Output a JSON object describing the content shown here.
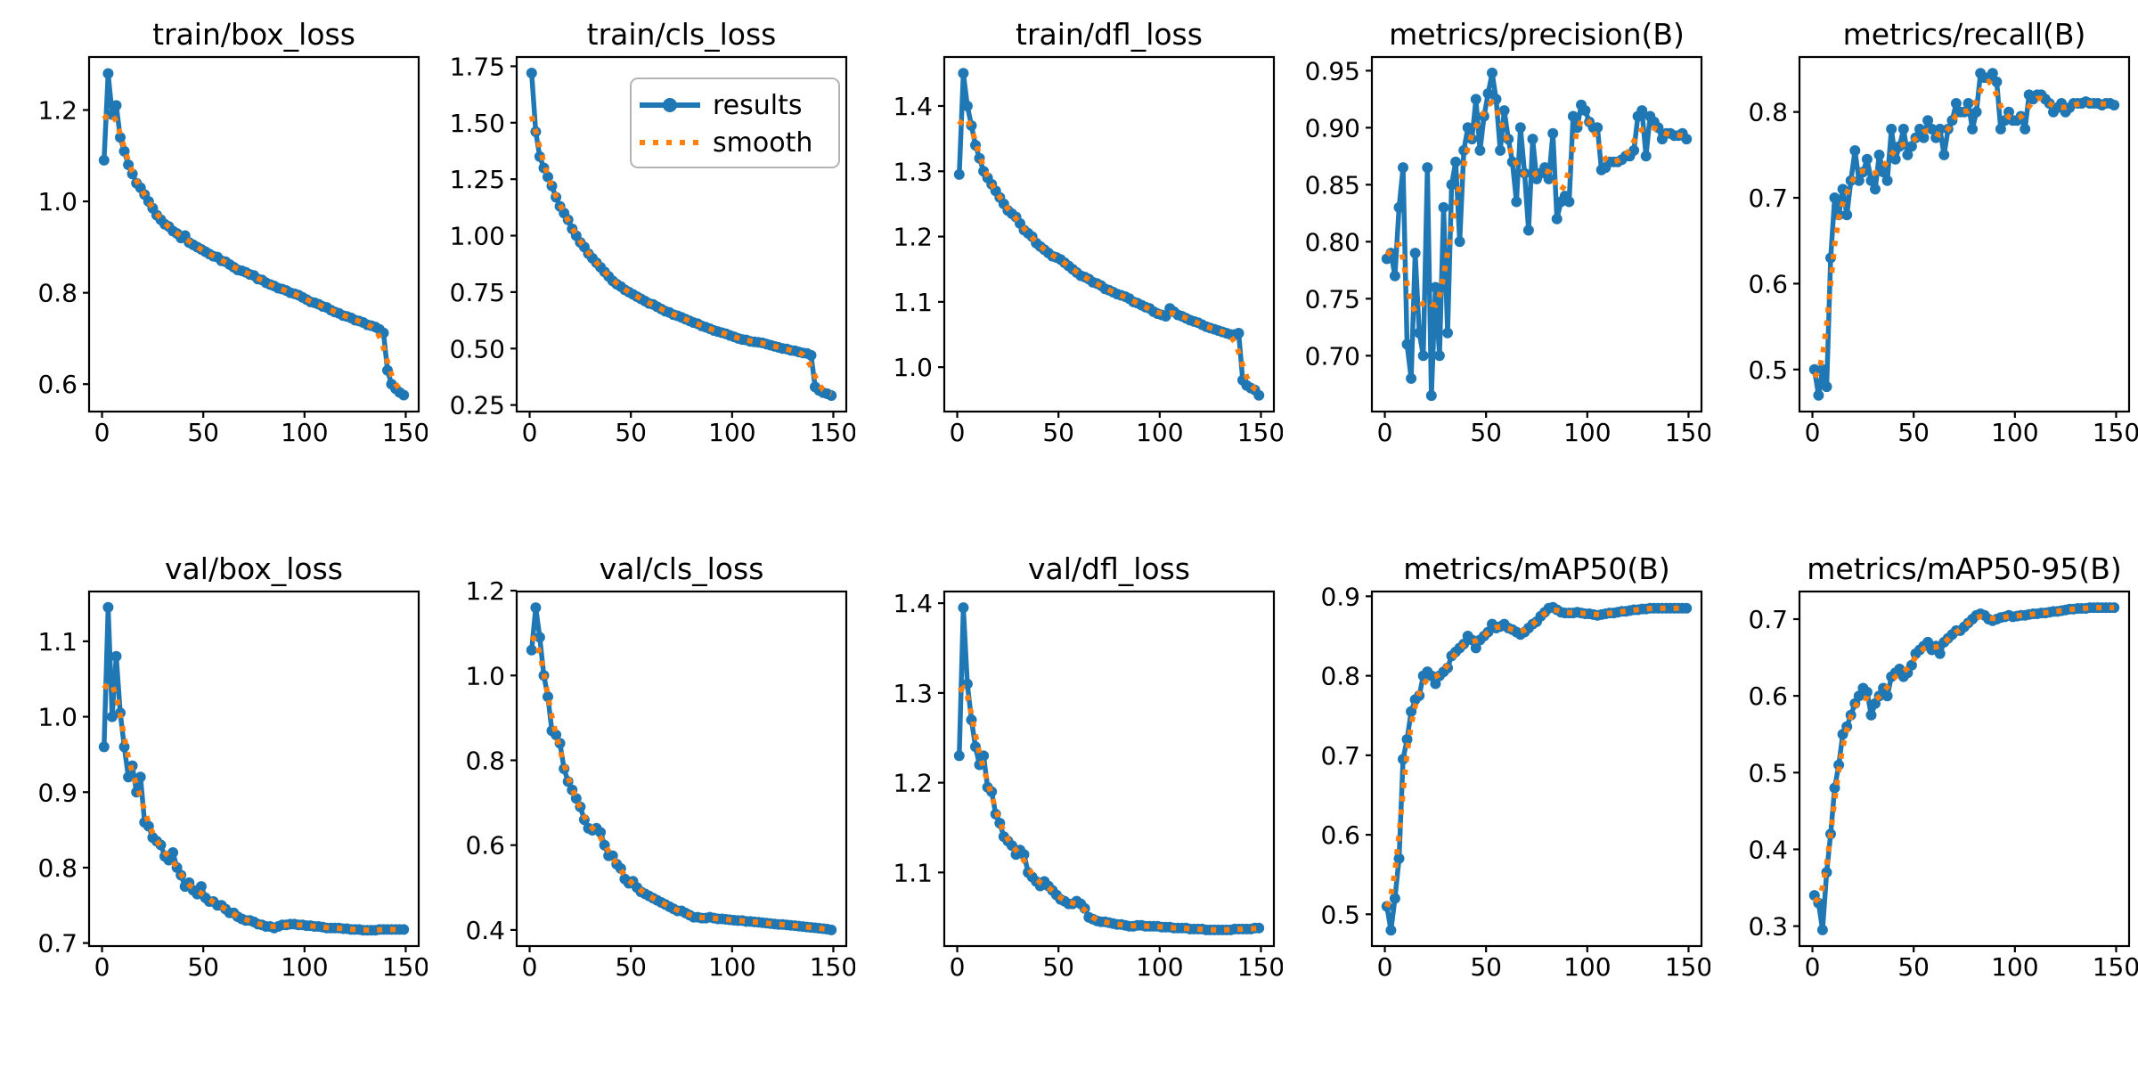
{
  "colors": {
    "results": "#1f77b4",
    "smooth": "#ff7f0e",
    "axes": "#000000",
    "background": "#ffffff",
    "legend_border": "#b4b4b4"
  },
  "legend": {
    "results_label": "results",
    "smooth_label": "smooth"
  },
  "chart_data": {
    "type": "line",
    "grid": false,
    "legend_entries": [
      "results",
      "smooth"
    ],
    "legend_position": "upper-right of train/cls_loss panel",
    "x_axis_note": "training epoch",
    "x": [
      1,
      3,
      5,
      7,
      9,
      11,
      13,
      15,
      17,
      19,
      21,
      23,
      25,
      27,
      29,
      31,
      33,
      35,
      37,
      39,
      41,
      43,
      45,
      47,
      49,
      51,
      53,
      55,
      57,
      59,
      61,
      63,
      65,
      67,
      69,
      71,
      73,
      75,
      77,
      79,
      81,
      83,
      85,
      87,
      89,
      91,
      93,
      95,
      97,
      99,
      101,
      103,
      105,
      107,
      109,
      111,
      113,
      115,
      117,
      119,
      121,
      123,
      125,
      127,
      129,
      131,
      133,
      135,
      137,
      139,
      141,
      143,
      145,
      147,
      149
    ],
    "xlim": [
      -6.4,
      156.4
    ],
    "xticks": [
      0,
      50,
      100,
      150
    ],
    "xtick_labels": [
      "0",
      "50",
      "100",
      "150"
    ],
    "charts": [
      {
        "title": "train/box_loss",
        "show_legend": false,
        "ylim": [
          0.54,
          1.316
        ],
        "yticks": [
          0.6,
          0.8,
          1.0,
          1.2
        ],
        "ytick_labels": [
          "0.6",
          "0.8",
          "1.0",
          "1.2"
        ],
        "values": [
          1.09,
          1.28,
          1.19,
          1.21,
          1.14,
          1.11,
          1.08,
          1.06,
          1.04,
          1.03,
          1.015,
          1.0,
          0.985,
          0.97,
          0.96,
          0.95,
          0.945,
          0.935,
          0.93,
          0.92,
          0.925,
          0.91,
          0.905,
          0.9,
          0.895,
          0.89,
          0.885,
          0.88,
          0.878,
          0.87,
          0.868,
          0.862,
          0.856,
          0.85,
          0.848,
          0.845,
          0.84,
          0.838,
          0.83,
          0.828,
          0.822,
          0.818,
          0.815,
          0.81,
          0.808,
          0.805,
          0.8,
          0.798,
          0.795,
          0.79,
          0.785,
          0.78,
          0.778,
          0.775,
          0.77,
          0.768,
          0.762,
          0.758,
          0.755,
          0.75,
          0.748,
          0.745,
          0.74,
          0.738,
          0.735,
          0.73,
          0.728,
          0.725,
          0.72,
          0.712,
          0.63,
          0.6,
          0.59,
          0.582,
          0.576
        ]
      },
      {
        "title": "train/cls_loss",
        "show_legend": true,
        "ylim": [
          0.221,
          1.791
        ],
        "yticks": [
          0.25,
          0.5,
          0.75,
          1.0,
          1.25,
          1.5,
          1.75
        ],
        "ytick_labels": [
          "0.25",
          "0.50",
          "0.75",
          "1.00",
          "1.25",
          "1.50",
          "1.75"
        ],
        "values": [
          1.72,
          1.46,
          1.35,
          1.3,
          1.26,
          1.22,
          1.17,
          1.13,
          1.1,
          1.07,
          1.03,
          1.0,
          0.97,
          0.95,
          0.92,
          0.9,
          0.88,
          0.86,
          0.84,
          0.82,
          0.8,
          0.785,
          0.775,
          0.76,
          0.75,
          0.74,
          0.73,
          0.72,
          0.71,
          0.7,
          0.695,
          0.685,
          0.675,
          0.665,
          0.66,
          0.65,
          0.645,
          0.638,
          0.63,
          0.622,
          0.615,
          0.61,
          0.6,
          0.595,
          0.588,
          0.58,
          0.575,
          0.57,
          0.565,
          0.558,
          0.552,
          0.545,
          0.54,
          0.538,
          0.532,
          0.53,
          0.528,
          0.525,
          0.52,
          0.515,
          0.51,
          0.505,
          0.5,
          0.498,
          0.492,
          0.49,
          0.485,
          0.48,
          0.478,
          0.47,
          0.33,
          0.315,
          0.305,
          0.3,
          0.292
        ]
      },
      {
        "title": "train/dfl_loss",
        "show_legend": false,
        "ylim": [
          0.932,
          1.475
        ],
        "yticks": [
          1.0,
          1.1,
          1.2,
          1.3,
          1.4
        ],
        "ytick_labels": [
          "1.0",
          "1.1",
          "1.2",
          "1.3",
          "1.4"
        ],
        "values": [
          1.295,
          1.45,
          1.4,
          1.37,
          1.34,
          1.32,
          1.3,
          1.29,
          1.28,
          1.27,
          1.26,
          1.25,
          1.24,
          1.235,
          1.23,
          1.22,
          1.21,
          1.205,
          1.2,
          1.19,
          1.185,
          1.18,
          1.175,
          1.17,
          1.168,
          1.165,
          1.16,
          1.155,
          1.15,
          1.145,
          1.14,
          1.138,
          1.135,
          1.13,
          1.128,
          1.125,
          1.12,
          1.118,
          1.115,
          1.112,
          1.11,
          1.108,
          1.105,
          1.1,
          1.098,
          1.095,
          1.092,
          1.09,
          1.085,
          1.082,
          1.08,
          1.078,
          1.09,
          1.085,
          1.08,
          1.078,
          1.075,
          1.072,
          1.07,
          1.068,
          1.065,
          1.062,
          1.06,
          1.058,
          1.056,
          1.054,
          1.052,
          1.05,
          1.05,
          1.052,
          0.98,
          0.972,
          0.968,
          0.965,
          0.957
        ]
      },
      {
        "title": "metrics/precision(B)",
        "show_legend": false,
        "ylim": [
          0.651,
          0.962
        ],
        "yticks": [
          0.7,
          0.75,
          0.8,
          0.85,
          0.9,
          0.95
        ],
        "ytick_labels": [
          "0.70",
          "0.75",
          "0.80",
          "0.85",
          "0.90",
          "0.95"
        ],
        "values": [
          0.785,
          0.79,
          0.77,
          0.83,
          0.865,
          0.71,
          0.68,
          0.79,
          0.72,
          0.7,
          0.865,
          0.665,
          0.76,
          0.7,
          0.83,
          0.72,
          0.85,
          0.87,
          0.8,
          0.88,
          0.9,
          0.89,
          0.925,
          0.88,
          0.91,
          0.93,
          0.948,
          0.925,
          0.88,
          0.915,
          0.89,
          0.87,
          0.835,
          0.9,
          0.86,
          0.81,
          0.89,
          0.855,
          0.86,
          0.865,
          0.855,
          0.895,
          0.82,
          0.835,
          0.84,
          0.835,
          0.91,
          0.9,
          0.92,
          0.915,
          0.905,
          0.9,
          0.9,
          0.863,
          0.865,
          0.87,
          0.87,
          0.87,
          0.872,
          0.875,
          0.875,
          0.88,
          0.91,
          0.915,
          0.875,
          0.91,
          0.905,
          0.9,
          0.89,
          0.895,
          0.895,
          0.893,
          0.893,
          0.895,
          0.89
        ]
      },
      {
        "title": "metrics/recall(B)",
        "show_legend": false,
        "ylim": [
          0.451,
          0.864
        ],
        "yticks": [
          0.5,
          0.6,
          0.7,
          0.8
        ],
        "ytick_labels": [
          "0.5",
          "0.6",
          "0.7",
          "0.8"
        ],
        "values": [
          0.5,
          0.47,
          0.5,
          0.48,
          0.63,
          0.7,
          0.68,
          0.71,
          0.68,
          0.72,
          0.755,
          0.72,
          0.73,
          0.745,
          0.72,
          0.71,
          0.75,
          0.73,
          0.72,
          0.78,
          0.745,
          0.76,
          0.78,
          0.75,
          0.76,
          0.77,
          0.78,
          0.77,
          0.79,
          0.78,
          0.77,
          0.78,
          0.75,
          0.78,
          0.79,
          0.81,
          0.8,
          0.8,
          0.81,
          0.78,
          0.8,
          0.845,
          0.84,
          0.84,
          0.845,
          0.835,
          0.78,
          0.79,
          0.8,
          0.79,
          0.79,
          0.795,
          0.78,
          0.82,
          0.815,
          0.82,
          0.82,
          0.815,
          0.81,
          0.8,
          0.805,
          0.81,
          0.8,
          0.805,
          0.81,
          0.81,
          0.81,
          0.812,
          0.81,
          0.81,
          0.81,
          0.808,
          0.81,
          0.81,
          0.808
        ]
      },
      {
        "title": "val/box_loss",
        "show_legend": false,
        "ylim": [
          0.696,
          1.166
        ],
        "yticks": [
          0.7,
          0.8,
          0.9,
          1.0,
          1.1
        ],
        "ytick_labels": [
          "0.7",
          "0.8",
          "0.9",
          "1.0",
          "1.1"
        ],
        "values": [
          0.96,
          1.145,
          1.0,
          1.08,
          1.005,
          0.96,
          0.92,
          0.935,
          0.9,
          0.92,
          0.86,
          0.855,
          0.84,
          0.835,
          0.83,
          0.815,
          0.81,
          0.82,
          0.8,
          0.79,
          0.775,
          0.78,
          0.77,
          0.765,
          0.775,
          0.76,
          0.755,
          0.755,
          0.75,
          0.75,
          0.745,
          0.74,
          0.74,
          0.735,
          0.732,
          0.73,
          0.73,
          0.728,
          0.725,
          0.724,
          0.722,
          0.722,
          0.72,
          0.722,
          0.724,
          0.724,
          0.725,
          0.725,
          0.724,
          0.724,
          0.723,
          0.723,
          0.722,
          0.722,
          0.721,
          0.72,
          0.72,
          0.72,
          0.72,
          0.719,
          0.719,
          0.718,
          0.718,
          0.718,
          0.717,
          0.717,
          0.717,
          0.717,
          0.718,
          0.718,
          0.718,
          0.718,
          0.718,
          0.718,
          0.718
        ]
      },
      {
        "title": "val/cls_loss",
        "show_legend": false,
        "ylim": [
          0.362,
          1.198
        ],
        "yticks": [
          0.4,
          0.6,
          0.8,
          1.0,
          1.2
        ],
        "ytick_labels": [
          "0.4",
          "0.6",
          "0.8",
          "1.0",
          "1.2"
        ],
        "values": [
          1.06,
          1.16,
          1.09,
          1.0,
          0.95,
          0.87,
          0.86,
          0.84,
          0.78,
          0.75,
          0.73,
          0.71,
          0.69,
          0.66,
          0.64,
          0.635,
          0.64,
          0.63,
          0.6,
          0.575,
          0.575,
          0.555,
          0.545,
          0.52,
          0.51,
          0.515,
          0.5,
          0.49,
          0.485,
          0.48,
          0.475,
          0.47,
          0.465,
          0.46,
          0.455,
          0.45,
          0.445,
          0.445,
          0.44,
          0.435,
          0.43,
          0.43,
          0.428,
          0.428,
          0.43,
          0.428,
          0.426,
          0.426,
          0.425,
          0.424,
          0.423,
          0.422,
          0.422,
          0.42,
          0.42,
          0.419,
          0.418,
          0.417,
          0.416,
          0.415,
          0.414,
          0.413,
          0.413,
          0.412,
          0.411,
          0.41,
          0.409,
          0.408,
          0.407,
          0.406,
          0.405,
          0.404,
          0.403,
          0.402,
          0.4
        ]
      },
      {
        "title": "val/dfl_loss",
        "show_legend": false,
        "ylim": [
          1.018,
          1.413
        ],
        "yticks": [
          1.1,
          1.2,
          1.3,
          1.4
        ],
        "ytick_labels": [
          "1.1",
          "1.2",
          "1.3",
          "1.4"
        ],
        "values": [
          1.23,
          1.395,
          1.31,
          1.27,
          1.24,
          1.22,
          1.23,
          1.195,
          1.19,
          1.165,
          1.155,
          1.14,
          1.135,
          1.13,
          1.12,
          1.125,
          1.12,
          1.1,
          1.095,
          1.09,
          1.085,
          1.09,
          1.085,
          1.08,
          1.075,
          1.07,
          1.068,
          1.065,
          1.065,
          1.068,
          1.065,
          1.06,
          1.05,
          1.048,
          1.046,
          1.045,
          1.045,
          1.044,
          1.043,
          1.042,
          1.042,
          1.041,
          1.04,
          1.04,
          1.041,
          1.041,
          1.04,
          1.04,
          1.04,
          1.04,
          1.039,
          1.039,
          1.039,
          1.038,
          1.038,
          1.038,
          1.038,
          1.037,
          1.037,
          1.037,
          1.037,
          1.036,
          1.036,
          1.036,
          1.036,
          1.036,
          1.036,
          1.036,
          1.037,
          1.037,
          1.037,
          1.037,
          1.037,
          1.038,
          1.038
        ]
      },
      {
        "title": "metrics/mAP50(B)",
        "show_legend": false,
        "ylim": [
          0.46,
          0.906
        ],
        "yticks": [
          0.5,
          0.6,
          0.7,
          0.8,
          0.9
        ],
        "ytick_labels": [
          "0.5",
          "0.6",
          "0.7",
          "0.8",
          "0.9"
        ],
        "values": [
          0.51,
          0.48,
          0.52,
          0.57,
          0.695,
          0.72,
          0.755,
          0.77,
          0.775,
          0.8,
          0.805,
          0.8,
          0.79,
          0.8,
          0.805,
          0.81,
          0.825,
          0.83,
          0.835,
          0.84,
          0.85,
          0.845,
          0.835,
          0.845,
          0.85,
          0.855,
          0.865,
          0.86,
          0.862,
          0.865,
          0.86,
          0.858,
          0.855,
          0.852,
          0.855,
          0.86,
          0.865,
          0.868,
          0.875,
          0.88,
          0.885,
          0.886,
          0.883,
          0.88,
          0.879,
          0.879,
          0.879,
          0.88,
          0.879,
          0.878,
          0.878,
          0.877,
          0.876,
          0.877,
          0.878,
          0.879,
          0.879,
          0.88,
          0.881,
          0.881,
          0.882,
          0.883,
          0.883,
          0.884,
          0.884,
          0.885,
          0.885,
          0.885,
          0.885,
          0.885,
          0.885,
          0.885,
          0.885,
          0.885,
          0.885
        ]
      },
      {
        "title": "metrics/mAP50-95(B)",
        "show_legend": false,
        "ylim": [
          0.274,
          0.736
        ],
        "yticks": [
          0.3,
          0.4,
          0.5,
          0.6,
          0.7
        ],
        "ytick_labels": [
          "0.3",
          "0.4",
          "0.5",
          "0.6",
          "0.7"
        ],
        "values": [
          0.34,
          0.33,
          0.295,
          0.37,
          0.42,
          0.48,
          0.51,
          0.55,
          0.56,
          0.575,
          0.59,
          0.6,
          0.61,
          0.605,
          0.575,
          0.59,
          0.6,
          0.61,
          0.6,
          0.625,
          0.63,
          0.635,
          0.625,
          0.63,
          0.64,
          0.655,
          0.66,
          0.665,
          0.67,
          0.66,
          0.665,
          0.655,
          0.67,
          0.675,
          0.68,
          0.685,
          0.685,
          0.69,
          0.695,
          0.7,
          0.705,
          0.707,
          0.705,
          0.7,
          0.698,
          0.7,
          0.702,
          0.703,
          0.705,
          0.703,
          0.704,
          0.705,
          0.705,
          0.706,
          0.707,
          0.707,
          0.708,
          0.708,
          0.709,
          0.71,
          0.71,
          0.711,
          0.712,
          0.713,
          0.713,
          0.714,
          0.714,
          0.714,
          0.715,
          0.715,
          0.715,
          0.715,
          0.715,
          0.715,
          0.715
        ]
      }
    ]
  }
}
